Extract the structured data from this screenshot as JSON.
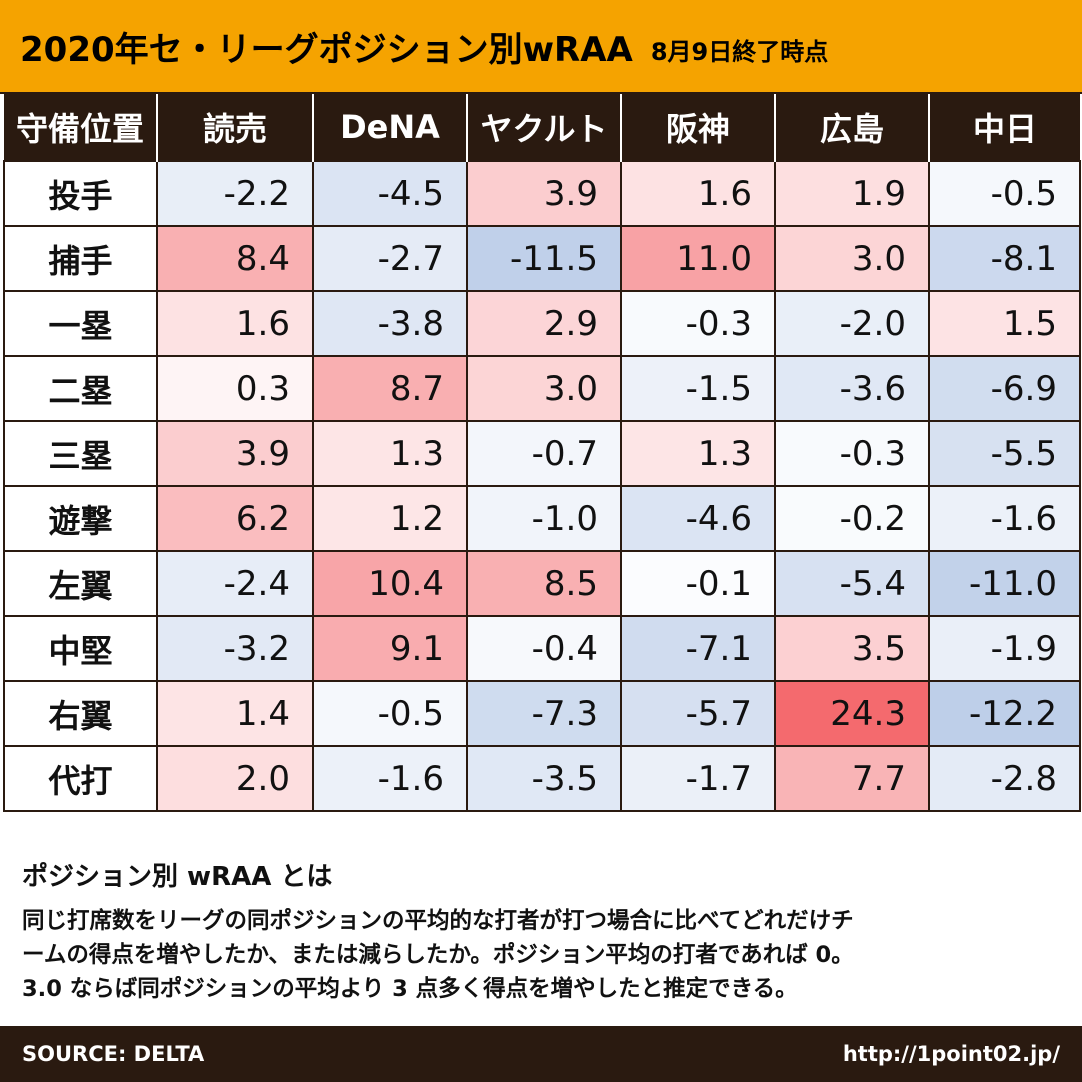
{
  "header": {
    "title": "2020年セ・リーグポジション別wRAA",
    "subtitle": "8月9日終了時点"
  },
  "chart_data": {
    "type": "table",
    "title": "2020年セ・リーグポジション別wRAA",
    "row_header_label": "守備位置",
    "columns": [
      "読売",
      "DeNA",
      "ヤクルト",
      "阪神",
      "広島",
      "中日"
    ],
    "rows": [
      {
        "position": "投手",
        "values": [
          "-2.2",
          "-4.5",
          "3.9",
          "1.6",
          "1.9",
          "-0.5"
        ]
      },
      {
        "position": "捕手",
        "values": [
          "8.4",
          "-2.7",
          "-11.5",
          "11.0",
          "3.0",
          "-8.1"
        ]
      },
      {
        "position": "一塁",
        "values": [
          "1.6",
          "-3.8",
          "2.9",
          "-0.3",
          "-2.0",
          "1.5"
        ]
      },
      {
        "position": "二塁",
        "values": [
          "0.3",
          "8.7",
          "3.0",
          "-1.5",
          "-3.6",
          "-6.9"
        ]
      },
      {
        "position": "三塁",
        "values": [
          "3.9",
          "1.3",
          "-0.7",
          "1.3",
          "-0.3",
          "-5.5"
        ]
      },
      {
        "position": "遊撃",
        "values": [
          "6.2",
          "1.2",
          "-1.0",
          "-4.6",
          "-0.2",
          "-1.6"
        ]
      },
      {
        "position": "左翼",
        "values": [
          "-2.4",
          "10.4",
          "8.5",
          "-0.1",
          "-5.4",
          "-11.0"
        ]
      },
      {
        "position": "中堅",
        "values": [
          "-3.2",
          "9.1",
          "-0.4",
          "-7.1",
          "3.5",
          "-1.9"
        ]
      },
      {
        "position": "右翼",
        "values": [
          "1.4",
          "-0.5",
          "-7.3",
          "-5.7",
          "24.3",
          "-12.2"
        ]
      },
      {
        "position": "代打",
        "values": [
          "2.0",
          "-1.6",
          "-3.5",
          "-1.7",
          "7.7",
          "-2.8"
        ]
      }
    ],
    "color_scale": {
      "positive": "#f46a6e",
      "negative": "#9db6de",
      "neutral": "#ffffff",
      "max_abs": 24.3
    }
  },
  "explanation": {
    "title": "ポジション別 wRAA とは",
    "lines": [
      "同じ打席数をリーグの同ポジションの平均的な打者が打つ場合に比べてどれだけチ",
      "ームの得点を増やしたか、または減らしたか。ポジション平均の打者であれば 0。",
      "3.0 ならば同ポジションの平均より 3 点多く得点を増やしたと推定できる。"
    ]
  },
  "footer": {
    "source": "SOURCE: DELTA",
    "url": "http://1point02.jp/"
  }
}
